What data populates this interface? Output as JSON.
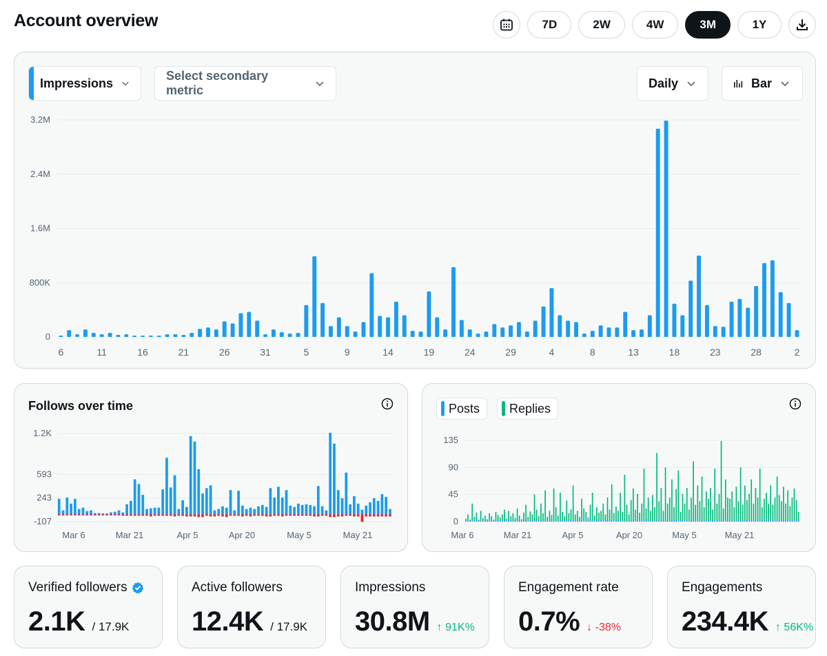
{
  "header": {
    "title": "Account overview",
    "ranges": [
      "7D",
      "2W",
      "4W",
      "3M",
      "1Y"
    ],
    "active_range": "3M"
  },
  "main_chart": {
    "primary_metric": "Impressions",
    "secondary_metric_placeholder": "Select secondary metric",
    "granularity": "Daily",
    "chart_type_label": "Bar"
  },
  "follows_card": {
    "title": "Follows over time"
  },
  "posts_card": {
    "posts_label": "Posts",
    "replies_label": "Replies"
  },
  "stats": [
    {
      "label": "Verified followers",
      "value": "2.1K",
      "sub": "/ 17.9K",
      "delta": "",
      "verified": true
    },
    {
      "label": "Active followers",
      "value": "12.4K",
      "sub": "/ 17.9K",
      "delta": ""
    },
    {
      "label": "Impressions",
      "value": "30.8M",
      "sub": "",
      "delta": "↑ 91K%",
      "delta_dir": "up"
    },
    {
      "label": "Engagement rate",
      "value": "0.7%",
      "sub": "",
      "delta": "↓ -38%",
      "delta_dir": "down"
    },
    {
      "label": "Engagements",
      "value": "234.4K",
      "sub": "",
      "delta": "↑ 56K%",
      "delta_dir": "up"
    }
  ],
  "colors": {
    "accent": "#1d9bf0",
    "replies": "#00ba7c",
    "negative": "#f4212e",
    "text": "#0f1419",
    "muted": "#536471"
  },
  "chart_data": [
    {
      "type": "bar",
      "name": "impressions-daily",
      "y_ticks": [
        "0",
        "800K",
        "1.6M",
        "2.4M",
        "3.2M"
      ],
      "ylim": [
        0,
        3200000
      ],
      "x_tick_labels": [
        "6",
        "11",
        "16",
        "21",
        "26",
        "31",
        "5",
        "9",
        "14",
        "19",
        "24",
        "29",
        "4",
        "8",
        "13",
        "18",
        "23",
        "28",
        "2"
      ],
      "values": [
        10000,
        100000,
        40000,
        110000,
        60000,
        40000,
        60000,
        30000,
        40000,
        20000,
        10000,
        10000,
        10000,
        40000,
        40000,
        30000,
        60000,
        120000,
        140000,
        110000,
        230000,
        200000,
        350000,
        370000,
        240000,
        40000,
        110000,
        70000,
        50000,
        60000,
        470000,
        1190000,
        500000,
        160000,
        290000,
        160000,
        80000,
        220000,
        940000,
        310000,
        290000,
        520000,
        320000,
        90000,
        80000,
        670000,
        290000,
        110000,
        1030000,
        250000,
        110000,
        50000,
        80000,
        190000,
        140000,
        170000,
        220000,
        80000,
        240000,
        450000,
        720000,
        320000,
        240000,
        220000,
        50000,
        90000,
        170000,
        140000,
        140000,
        370000,
        100000,
        110000,
        320000,
        3070000,
        3190000,
        490000,
        320000,
        830000,
        1200000,
        470000,
        160000,
        150000,
        520000,
        560000,
        430000,
        750000,
        1090000,
        1130000,
        660000,
        500000,
        100000
      ]
    },
    {
      "type": "bar",
      "name": "follows-over-time",
      "title": "Follows over time",
      "y_ticks": [
        "-107",
        "243",
        "593",
        "1.2K"
      ],
      "ylim": [
        -107,
        1200
      ],
      "x_tick_labels": [
        "Mar 6",
        "Mar 21",
        "Apr 5",
        "Apr 20",
        "May 5",
        "May 21"
      ],
      "gains": [
        230,
        60,
        250,
        160,
        230,
        80,
        100,
        50,
        60,
        20,
        20,
        10,
        10,
        30,
        40,
        60,
        30,
        150,
        200,
        520,
        450,
        290,
        80,
        90,
        100,
        100,
        370,
        840,
        400,
        580,
        80,
        210,
        110,
        1160,
        1080,
        670,
        310,
        390,
        430,
        60,
        80,
        120,
        100,
        360,
        60,
        350,
        130,
        80,
        100,
        80,
        120,
        140,
        110,
        390,
        250,
        410,
        250,
        360,
        130,
        110,
        160,
        140,
        150,
        140,
        120,
        420,
        120,
        60,
        1210,
        1050,
        360,
        240,
        620,
        150,
        270,
        160,
        70,
        130,
        180,
        240,
        200,
        300,
        260,
        80
      ],
      "losses": [
        10,
        10,
        10,
        10,
        10,
        10,
        10,
        10,
        10,
        10,
        10,
        10,
        10,
        10,
        10,
        10,
        20,
        20,
        20,
        20,
        20,
        20,
        20,
        30,
        20,
        20,
        20,
        20,
        20,
        30,
        20,
        20,
        30,
        30,
        30,
        40,
        40,
        20,
        30,
        30,
        20,
        30,
        40,
        20,
        20,
        20,
        30,
        20,
        30,
        20,
        20,
        20,
        30,
        30,
        20,
        20,
        30,
        20,
        20,
        20,
        20,
        20,
        20,
        20,
        30,
        30,
        20,
        20,
        40,
        40,
        30,
        30,
        20,
        20,
        30,
        30,
        110,
        30,
        30,
        30,
        30,
        30,
        30,
        30
      ]
    },
    {
      "type": "bar",
      "name": "posts-replies",
      "y_ticks": [
        "0",
        "45",
        "90",
        "135"
      ],
      "ylim": [
        0,
        135
      ],
      "x_tick_labels": [
        "Mar 6",
        "Mar 21",
        "Apr 5",
        "Apr 20",
        "May 5",
        "May 21"
      ],
      "series": [
        {
          "name": "Posts",
          "values": [
            1,
            0,
            1,
            0,
            1,
            0,
            1,
            1,
            0,
            1,
            0,
            1,
            0,
            1,
            1,
            0,
            1,
            0,
            1,
            0,
            1,
            1,
            0,
            1,
            0,
            1,
            0,
            1,
            1,
            0,
            1,
            0,
            1,
            1,
            0,
            1,
            0,
            1,
            0,
            1,
            1,
            0,
            1,
            0,
            1,
            0,
            1,
            1,
            0,
            1,
            0,
            1,
            1,
            0,
            1,
            0,
            1,
            0,
            1,
            1,
            0,
            1,
            0,
            1,
            0,
            1,
            1,
            0,
            1,
            0,
            1,
            1,
            0,
            1,
            0,
            1,
            0,
            1,
            1,
            0,
            1,
            0,
            1,
            0,
            1,
            1,
            0,
            1,
            0,
            1,
            0,
            1,
            1,
            0,
            1,
            0,
            1,
            0,
            1,
            1,
            0,
            1,
            0,
            1,
            0,
            1,
            1,
            0,
            1,
            0,
            1,
            0,
            1,
            1,
            0,
            1,
            0,
            1,
            0,
            1,
            1,
            0,
            1,
            0,
            1,
            0,
            1,
            1,
            0,
            1,
            0,
            1,
            0,
            1,
            1,
            0,
            1,
            0,
            1,
            0,
            1,
            1,
            0,
            1,
            0,
            1,
            0,
            1,
            1,
            0,
            1,
            0,
            1,
            0,
            1,
            1
          ]
        },
        {
          "name": "Replies",
          "values": [
            5,
            12,
            3,
            30,
            8,
            15,
            2,
            18,
            6,
            10,
            4,
            14,
            9,
            3,
            16,
            11,
            7,
            12,
            20,
            5,
            18,
            9,
            14,
            6,
            22,
            10,
            4,
            15,
            28,
            8,
            17,
            12,
            45,
            20,
            9,
            30,
            14,
            52,
            8,
            18,
            11,
            55,
            24,
            10,
            48,
            16,
            9,
            35,
            14,
            20,
            60,
            12,
            18,
            8,
            38,
            22,
            16,
            7,
            28,
            48,
            10,
            24,
            15,
            18,
            30,
            12,
            40,
            20,
            62,
            14,
            25,
            18,
            48,
            16,
            78,
            28,
            12,
            36,
            55,
            20,
            46,
            15,
            30,
            88,
            22,
            40,
            18,
            44,
            24,
            114,
            34,
            56,
            18,
            90,
            30,
            40,
            70,
            24,
            54,
            85,
            16,
            46,
            30,
            56,
            20,
            40,
            100,
            28,
            60,
            34,
            75,
            24,
            50,
            38,
            56,
            20,
            88,
            30,
            46,
            134,
            22,
            70,
            40,
            38,
            50,
            24,
            58,
            34,
            90,
            28,
            60,
            36,
            46,
            70,
            30,
            56,
            40,
            88,
            24,
            38,
            48,
            30,
            60,
            28,
            40,
            75,
            44,
            34,
            58,
            30,
            52,
            26,
            40,
            55,
            36,
            16
          ]
        }
      ]
    }
  ]
}
